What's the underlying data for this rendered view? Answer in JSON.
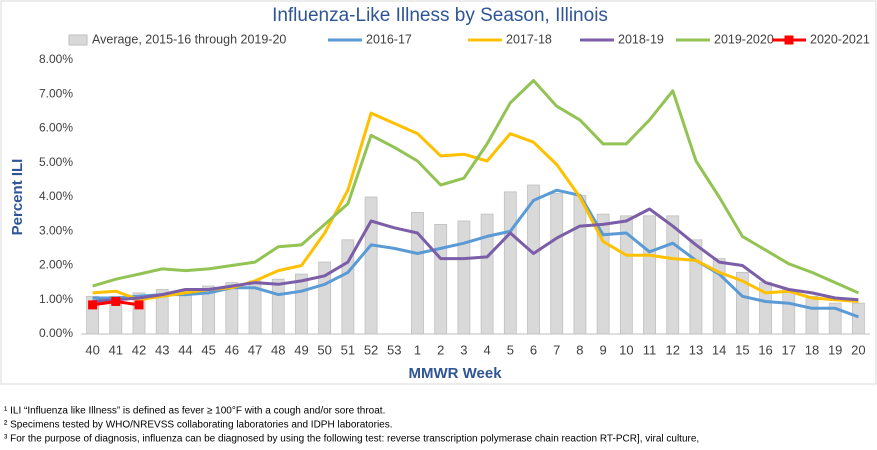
{
  "chart_data": {
    "type": "bar-line",
    "title": "Influenza-Like Illness by Season, Illinois",
    "x_label": "MMWR Week",
    "y_label": "Percent ILI",
    "categories": [
      "40",
      "41",
      "42",
      "43",
      "44",
      "45",
      "46",
      "47",
      "48",
      "49",
      "50",
      "51",
      "52",
      "53",
      "1",
      "2",
      "3",
      "4",
      "5",
      "6",
      "7",
      "8",
      "9",
      "10",
      "11",
      "12",
      "13",
      "14",
      "15",
      "16",
      "17",
      "18",
      "19",
      "20"
    ],
    "ylim": [
      0,
      8
    ],
    "yticks": [
      {
        "value": 0,
        "label": "0.00%"
      },
      {
        "value": 1,
        "label": "1.00%"
      },
      {
        "value": 2,
        "label": "2.00%"
      },
      {
        "value": 3,
        "label": "3.00%"
      },
      {
        "value": 4,
        "label": "4.00%"
      },
      {
        "value": 5,
        "label": "5.00%"
      },
      {
        "value": 6,
        "label": "6.00%"
      },
      {
        "value": 7,
        "label": "7.00%"
      },
      {
        "value": 8,
        "label": "8.00%"
      }
    ],
    "grid": false,
    "legend": "top",
    "series": [
      {
        "name": "Average, 2015-16 through 2019-20",
        "type": "bar",
        "color": "#d9d9d9",
        "values": [
          1.1,
          1.1,
          1.2,
          1.3,
          1.25,
          1.4,
          1.5,
          1.55,
          1.6,
          1.75,
          2.1,
          2.75,
          4.0,
          null,
          3.55,
          3.2,
          3.3,
          3.5,
          4.15,
          4.35,
          4.1,
          4.05,
          3.5,
          3.45,
          3.45,
          3.45,
          2.75,
          2.2,
          1.8,
          1.5,
          1.3,
          1.1,
          0.9,
          0.9
        ]
      },
      {
        "name": "2016-17",
        "type": "line",
        "color": "#5b9bd5",
        "values": [
          1.05,
          1.05,
          1.1,
          1.15,
          1.15,
          1.2,
          1.35,
          1.35,
          1.15,
          1.25,
          1.45,
          1.8,
          2.6,
          2.5,
          2.35,
          2.5,
          2.65,
          2.85,
          3.0,
          3.9,
          4.2,
          4.05,
          2.9,
          2.95,
          2.4,
          2.65,
          2.15,
          1.75,
          1.1,
          0.95,
          0.9,
          0.75,
          0.75,
          0.5
        ]
      },
      {
        "name": "2017-18",
        "type": "line",
        "color": "#ffc000",
        "values": [
          1.2,
          1.25,
          1.0,
          1.1,
          1.2,
          1.3,
          1.35,
          1.55,
          1.85,
          2.0,
          2.95,
          4.2,
          6.45,
          6.15,
          5.85,
          5.2,
          5.25,
          5.05,
          5.85,
          5.6,
          4.95,
          4.0,
          2.7,
          2.3,
          2.3,
          2.2,
          2.15,
          1.8,
          1.55,
          1.2,
          1.25,
          1.05,
          1.0,
          0.95
        ]
      },
      {
        "name": "2018-19",
        "type": "line",
        "color": "#7b5ea7",
        "values": [
          0.95,
          1.0,
          1.05,
          1.15,
          1.3,
          1.3,
          1.4,
          1.5,
          1.45,
          1.55,
          1.7,
          2.1,
          3.3,
          3.1,
          2.95,
          2.2,
          2.2,
          2.25,
          2.95,
          2.35,
          2.8,
          3.15,
          3.2,
          3.3,
          3.65,
          3.15,
          2.6,
          2.1,
          2.0,
          1.5,
          1.3,
          1.2,
          1.05,
          1.0
        ]
      },
      {
        "name": "2019-2020",
        "type": "line",
        "color": "#92c353",
        "values": [
          1.4,
          1.6,
          1.75,
          1.9,
          1.85,
          1.9,
          2.0,
          2.1,
          2.55,
          2.6,
          3.2,
          3.8,
          5.8,
          5.45,
          5.05,
          4.35,
          4.55,
          5.55,
          6.75,
          7.4,
          6.65,
          6.25,
          5.55,
          5.55,
          6.25,
          7.1,
          5.05,
          4.0,
          2.85,
          2.45,
          2.05,
          1.8,
          1.5,
          1.2
        ]
      },
      {
        "name": "2020-2021",
        "type": "line",
        "marker": "square",
        "color": "#ff0000",
        "values": [
          0.85,
          0.95,
          0.85,
          null,
          null,
          null,
          null,
          null,
          null,
          null,
          null,
          null,
          null,
          null,
          null,
          null,
          null,
          null,
          null,
          null,
          null,
          null,
          null,
          null,
          null,
          null,
          null,
          null,
          null,
          null,
          null,
          null,
          null,
          null
        ]
      }
    ]
  },
  "footnotes": [
    "¹ ILI “Influenza like Illness” is defined as fever ≥ 100°F with a cough and/or sore throat.",
    "² Specimens tested by WHO/NREVSS collaborating laboratories and IDPH laboratories.",
    "³ For the purpose of diagnosis, influenza can be diagnosed by using the following test: reverse transcription polymerase chain reaction RT-PCR], viral culture,"
  ]
}
